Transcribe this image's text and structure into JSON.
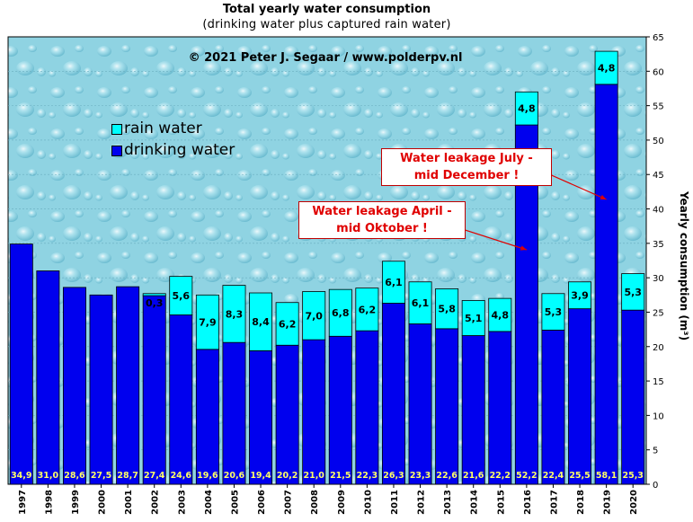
{
  "title": "Total yearly water consumption",
  "subtitle": "(drinking  water plus captured rain  water)",
  "copyright": "© 2021 Peter J.  Segaar / www.polderpv.nl",
  "colors": {
    "drinking": "#0000ee",
    "rain": "#00ffff",
    "plot_bg": "#8fd3e2",
    "annotation": "#e00000"
  },
  "legend": [
    {
      "label": "rain water",
      "color": "#00ffff"
    },
    {
      "label": "drinking water",
      "color": "#0000ee"
    }
  ],
  "annotations": [
    {
      "line1": "Water leakage April -",
      "line2": "mid Oktober !",
      "year": "2016"
    },
    {
      "line1": "Water leakage July -",
      "line2": "mid December !",
      "year": "2019"
    }
  ],
  "chart_data": {
    "type": "bar",
    "stacked": true,
    "ylabel": "Yearly consumption (m³)",
    "ylim": [
      0,
      65
    ],
    "yticks": [
      0,
      5,
      10,
      15,
      20,
      25,
      30,
      35,
      40,
      45,
      50,
      55,
      60,
      65
    ],
    "categories": [
      "1997",
      "1998",
      "1999",
      "2000",
      "2001",
      "2002",
      "2003",
      "2004",
      "2005",
      "2006",
      "2007",
      "2008",
      "2009",
      "2010",
      "2011",
      "2012",
      "2013",
      "2014",
      "2015",
      "2016",
      "2017",
      "2018",
      "2019",
      "2020"
    ],
    "series": [
      {
        "name": "drinking water",
        "values": [
          34.9,
          31.0,
          28.6,
          27.5,
          28.7,
          27.4,
          24.6,
          19.6,
          20.6,
          19.4,
          20.2,
          21.0,
          21.5,
          22.3,
          26.3,
          23.3,
          22.6,
          21.6,
          22.2,
          52.2,
          22.4,
          25.5,
          58.1,
          25.3
        ],
        "labels": [
          "34,9",
          "31,0",
          "28,6",
          "27,5",
          "28,7",
          "27,4",
          "24,6",
          "19,6",
          "20,6",
          "19,4",
          "20,2",
          "21,0",
          "21,5",
          "22,3",
          "26,3",
          "23,3",
          "22,6",
          "21,6",
          "22,2",
          "52,2",
          "22,4",
          "25,5",
          "58,1",
          "25,3"
        ]
      },
      {
        "name": "rain water",
        "values": [
          0,
          0,
          0,
          0,
          0,
          0.3,
          5.6,
          7.9,
          8.3,
          8.4,
          6.2,
          7.0,
          6.8,
          6.2,
          6.1,
          6.1,
          5.8,
          5.1,
          4.8,
          4.8,
          5.3,
          3.9,
          4.8,
          5.3
        ],
        "labels": [
          "",
          "",
          "",
          "",
          "",
          "0,3",
          "5,6",
          "7,9",
          "8,3",
          "8,4",
          "6,2",
          "7,0",
          "6,8",
          "6,2",
          "6,1",
          "6,1",
          "5,8",
          "5,1",
          "4,8",
          "4,8",
          "5,3",
          "3,9",
          "4,8",
          "5,3"
        ]
      }
    ],
    "grid": true,
    "legend_position": "top-left"
  }
}
